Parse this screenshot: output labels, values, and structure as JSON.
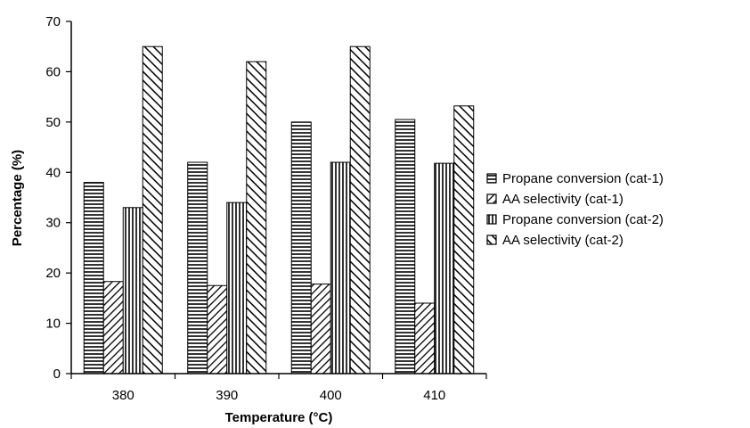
{
  "chart_data": {
    "type": "bar",
    "title": "",
    "xlabel": "Temperature (°C)",
    "ylabel": "Percentage (%)",
    "ylim": [
      0,
      70
    ],
    "yticks": [
      0,
      10,
      20,
      30,
      40,
      50,
      60,
      70
    ],
    "categories": [
      "380",
      "390",
      "400",
      "410"
    ],
    "series": [
      {
        "name": "Propane conversion (cat-1)",
        "pattern": "horizontal-lines",
        "values": [
          38,
          42,
          50,
          50.5
        ]
      },
      {
        "name": "AA selectivity (cat-1)",
        "pattern": "diagonal-back",
        "values": [
          18.3,
          17.5,
          17.8,
          14
        ]
      },
      {
        "name": "Propane conversion (cat-2)",
        "pattern": "vertical-lines",
        "values": [
          33,
          34,
          42,
          41.8
        ]
      },
      {
        "name": "AA selectivity (cat-2)",
        "pattern": "diagonal-forward",
        "values": [
          65,
          62,
          65,
          53.2
        ]
      }
    ],
    "grid": false,
    "legend_position": "right",
    "colors": {
      "bar_fill": "#ffffff",
      "bar_stroke": "#000000",
      "hatch": "#000000"
    }
  }
}
